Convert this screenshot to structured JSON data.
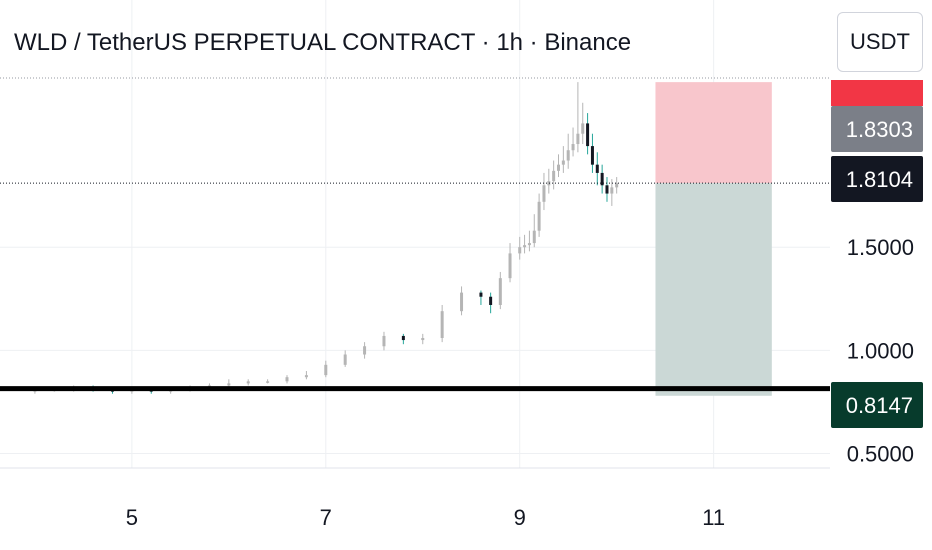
{
  "header": {
    "title": "WLD / TetherUS PERPETUAL CONTRACT · 1h · Binance",
    "currency": "USDT"
  },
  "colors": {
    "up": "#b5b5b5",
    "down": "#131722",
    "wick_accent": "#26a69a",
    "stop_zone": "#f8c6cc",
    "target_zone": "#cbd8d6",
    "grid": "#eef0f3",
    "horizontal_line": "#000000",
    "label_top_red": "#f23645",
    "label_gray": "#7b7f88",
    "label_dark": "#131722",
    "label_green": "#073b2c"
  },
  "chart_data": {
    "type": "candlestick",
    "x": [
      4.0,
      4.2,
      4.4,
      4.6,
      4.8,
      5.0,
      5.2,
      5.4,
      5.6,
      5.8,
      6.0,
      6.2,
      6.4,
      6.6,
      6.8,
      7.0,
      7.2,
      7.4,
      7.6,
      7.8,
      8.0,
      8.2,
      8.4,
      8.6,
      8.7,
      8.8,
      8.9,
      9.0,
      9.05,
      9.1,
      9.15,
      9.2,
      9.25,
      9.3,
      9.35,
      9.4,
      9.45,
      9.5,
      9.55,
      9.6,
      9.65,
      9.7,
      9.75,
      9.8,
      9.85,
      9.9,
      9.95,
      10.0
    ],
    "open": [
      0.8,
      0.81,
      0.81,
      0.82,
      0.81,
      0.8,
      0.81,
      0.8,
      0.81,
      0.82,
      0.83,
      0.84,
      0.85,
      0.85,
      0.87,
      0.88,
      0.93,
      0.98,
      1.02,
      1.07,
      1.05,
      1.06,
      1.19,
      1.28,
      1.26,
      1.22,
      1.35,
      1.47,
      1.5,
      1.51,
      1.52,
      1.58,
      1.72,
      1.8,
      1.82,
      1.87,
      1.9,
      1.92,
      1.97,
      2.0,
      2.05,
      2.1,
      1.99,
      1.9,
      1.86,
      1.8,
      1.76,
      1.79
    ],
    "close": [
      0.81,
      0.81,
      0.82,
      0.81,
      0.8,
      0.81,
      0.8,
      0.81,
      0.82,
      0.83,
      0.84,
      0.85,
      0.85,
      0.87,
      0.88,
      0.93,
      0.98,
      1.02,
      1.07,
      1.05,
      1.06,
      1.19,
      1.28,
      1.26,
      1.22,
      1.35,
      1.47,
      1.5,
      1.51,
      1.52,
      1.58,
      1.72,
      1.8,
      1.82,
      1.87,
      1.9,
      1.92,
      1.97,
      2.0,
      2.05,
      2.1,
      1.99,
      1.9,
      1.86,
      1.8,
      1.76,
      1.79,
      1.81
    ],
    "high": [
      0.82,
      0.82,
      0.83,
      0.83,
      0.82,
      0.82,
      0.82,
      0.82,
      0.83,
      0.84,
      0.86,
      0.86,
      0.86,
      0.88,
      0.9,
      0.95,
      1.0,
      1.04,
      1.09,
      1.08,
      1.08,
      1.22,
      1.31,
      1.29,
      1.28,
      1.38,
      1.52,
      1.55,
      1.56,
      1.58,
      1.66,
      1.76,
      1.86,
      1.88,
      1.92,
      1.95,
      1.99,
      2.05,
      2.08,
      2.3,
      2.2,
      2.15,
      2.05,
      1.96,
      1.9,
      1.84,
      1.83,
      1.84
    ],
    "low": [
      0.79,
      0.8,
      0.8,
      0.8,
      0.79,
      0.79,
      0.79,
      0.79,
      0.8,
      0.81,
      0.82,
      0.83,
      0.84,
      0.84,
      0.86,
      0.87,
      0.92,
      0.96,
      1.0,
      1.03,
      1.03,
      1.04,
      1.17,
      1.22,
      1.18,
      1.2,
      1.33,
      1.44,
      1.47,
      1.48,
      1.5,
      1.55,
      1.68,
      1.76,
      1.78,
      1.84,
      1.86,
      1.88,
      1.94,
      1.96,
      2.0,
      1.95,
      1.86,
      1.8,
      1.76,
      1.72,
      1.7,
      1.76
    ],
    "x_axis": {
      "ticks": [
        5,
        7,
        9,
        11
      ],
      "range": [
        3.64,
        12.2
      ]
    },
    "y_axis": {
      "ticks": [
        0.5,
        1.0,
        1.5
      ],
      "tick_labels": [
        "0.5000",
        "1.0000",
        "1.5000"
      ],
      "range": [
        0.43,
        2.32
      ]
    },
    "price_labels": [
      {
        "value": 1.8303,
        "text": "1.8303",
        "style": "gray"
      },
      {
        "value": 1.8104,
        "text": "1.8104",
        "style": "dark"
      },
      {
        "value": 0.8147,
        "text": "0.8147",
        "style": "green"
      }
    ],
    "horizontal_line": 0.8147,
    "current_price_line": 1.8104,
    "position": {
      "x_start": 10.4,
      "x_end": 11.6,
      "entry": 1.8104,
      "stop": 2.3,
      "target": 0.78
    },
    "grid": true
  }
}
